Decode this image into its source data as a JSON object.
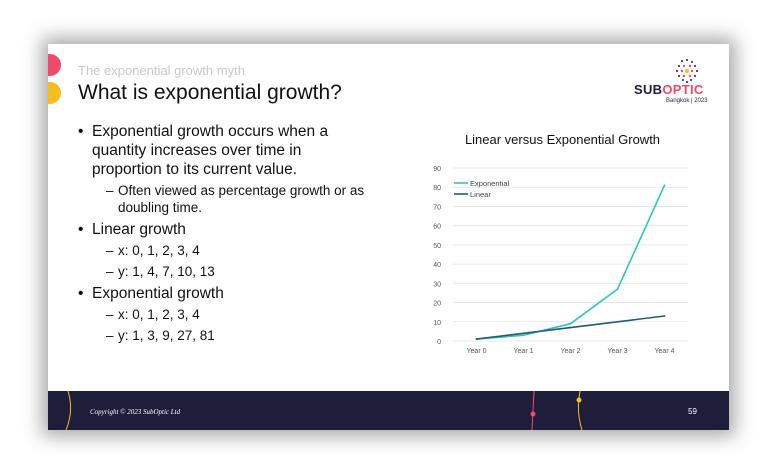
{
  "slide": {
    "subtitle": "The exponential growth myth",
    "title": "What is exponential growth?",
    "bullets": {
      "b1": "Exponential growth occurs when a quantity increases over time in proportion to its current value.",
      "b1_sub": "Often viewed as percentage growth or as doubling time.",
      "b2": "Linear growth",
      "b2_x": "x: 0, 1, 2, 3, 4",
      "b2_y": "y: 1, 4, 7, 10, 13",
      "b3": "Exponential growth",
      "b3_x": "x: 0, 1, 2, 3, 4",
      "b3_y": "y: 1, 3, 9, 27, 81"
    },
    "dash": "–",
    "logo": {
      "word_a": "SUB",
      "word_b": "OPTIC",
      "sub": "Bangkok | 2023"
    },
    "footer": {
      "copyright": "Copyright © 2023 SubOptic Ltd",
      "page_number": "59"
    }
  },
  "colors": {
    "exponential": "#2ec4c4",
    "linear": "#1f5e73",
    "footer_bg": "#1e1d3a",
    "accent_red": "#ef4a6b",
    "accent_yellow": "#f7bd1d"
  },
  "chart_data": {
    "type": "line",
    "title": "Linear versus Exponential Growth",
    "categories": [
      "Year 0",
      "Year 1",
      "Year 2",
      "Year 3",
      "Year 4"
    ],
    "series": [
      {
        "name": "Exponential",
        "values": [
          1,
          3,
          9,
          27,
          81
        ]
      },
      {
        "name": "Linear",
        "values": [
          1,
          4,
          7,
          10,
          13
        ]
      }
    ],
    "ylim": [
      0,
      90
    ],
    "yticks": [
      0,
      10,
      20,
      30,
      40,
      50,
      60,
      70,
      80,
      90
    ],
    "legend": "top-left",
    "xlabel": "",
    "ylabel": ""
  }
}
